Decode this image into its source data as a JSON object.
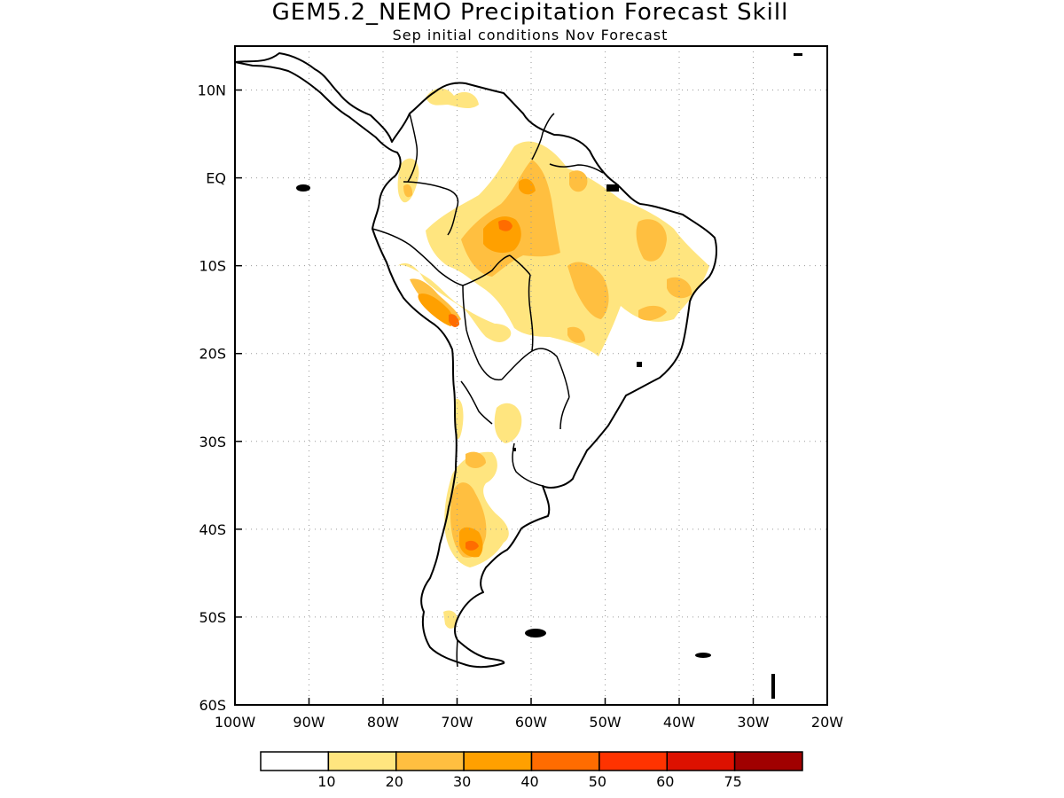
{
  "title": "GEM5.2_NEMO Precipitation Forecast Skill",
  "subtitle": "Sep initial conditions  Nov Forecast",
  "chart_data": {
    "type": "heatmap",
    "title": "GEM5.2_NEMO Precipitation Forecast Skill",
    "subtitle": "Sep initial conditions  Nov Forecast",
    "lon_range": [
      -100,
      -20
    ],
    "lat_range": [
      -60,
      15
    ],
    "grid": true,
    "x_ticks": [
      "100W",
      "90W",
      "80W",
      "70W",
      "60W",
      "50W",
      "40W",
      "30W",
      "20W"
    ],
    "y_ticks": [
      "10N",
      "EQ",
      "10S",
      "20S",
      "30S",
      "40S",
      "50S",
      "60S"
    ],
    "colorbar": {
      "labels": [
        "10",
        "20",
        "30",
        "40",
        "50",
        "60",
        "75"
      ],
      "colors": [
        "#ffffff",
        "#ffe57f",
        "#ffbf40",
        "#ffa000",
        "#ff6c00",
        "#ff3300",
        "#dd1100",
        "#a00000"
      ]
    },
    "skill_regions": [
      {
        "lon": -64,
        "lat": -4,
        "level": 30
      },
      {
        "lon": -64,
        "lat": -5,
        "level": 40
      },
      {
        "lon": -73,
        "lat": -14,
        "level": 30
      },
      {
        "lon": -71,
        "lat": -16,
        "level": 40
      },
      {
        "lon": -68,
        "lat": -42,
        "level": 30
      },
      {
        "lon": -68,
        "lat": -42,
        "level": 40
      },
      {
        "lon": -45,
        "lat": -6,
        "level": 20
      },
      {
        "lon": -43,
        "lat": -12,
        "level": 20
      },
      {
        "lon": -55,
        "lat": -12,
        "level": 20
      },
      {
        "lon": -60,
        "lat": 5,
        "level": 20
      },
      {
        "lon": -54,
        "lat": 1,
        "level": 20
      },
      {
        "lon": -69,
        "lat": -33,
        "level": 20
      },
      {
        "lon": -75,
        "lat": 0,
        "level": 20
      }
    ]
  }
}
